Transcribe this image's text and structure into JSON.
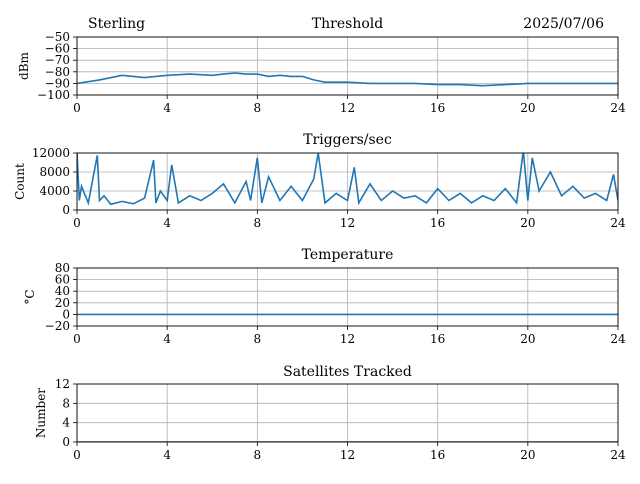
{
  "header": {
    "station": "Sterling",
    "date": "2025/07/06"
  },
  "colors": {
    "series": "#1f77b4",
    "grid": "#b0b0b0",
    "axis": "#000000"
  },
  "chart_data": [
    {
      "type": "line",
      "title": "Threshold",
      "xlabel": "",
      "ylabel": "dBm",
      "xlim": [
        0,
        24
      ],
      "ylim": [
        -100,
        -50
      ],
      "xticks": [
        0,
        4,
        8,
        12,
        16,
        20,
        24
      ],
      "yticks": [
        -100,
        -90,
        -80,
        -70,
        -60,
        -50
      ],
      "ytick_labels": [
        "−100",
        "−90",
        "−80",
        "−70",
        "−60",
        "−50"
      ],
      "grid": true,
      "series": [
        {
          "x": [
            0,
            1,
            2,
            3,
            4,
            5,
            6,
            6.5,
            7,
            7.5,
            8,
            8.5,
            9,
            9.5,
            10,
            10.5,
            11,
            12,
            13,
            14,
            15,
            16,
            17,
            18,
            19,
            20,
            21,
            22,
            23,
            24
          ],
          "y": [
            -90,
            -87,
            -83,
            -85,
            -83,
            -82,
            -83,
            -82,
            -81,
            -82,
            -82,
            -84,
            -83,
            -84,
            -84,
            -87,
            -89,
            -89,
            -90,
            -90,
            -90,
            -91,
            -91,
            -92,
            -91,
            -90,
            -90,
            -90,
            -90,
            -90
          ]
        }
      ]
    },
    {
      "type": "line",
      "title": "Triggers/sec",
      "xlabel": "",
      "ylabel": "Count",
      "xlim": [
        0,
        24
      ],
      "ylim": [
        0,
        12000
      ],
      "xticks": [
        0,
        4,
        8,
        12,
        16,
        20,
        24
      ],
      "yticks": [
        0,
        4000,
        8000,
        12000
      ],
      "ytick_labels": [
        "0",
        "4000",
        "8000",
        "12000"
      ],
      "grid": true,
      "series": [
        {
          "x": [
            0,
            0.1,
            0.2,
            0.5,
            0.9,
            1.0,
            1.2,
            1.5,
            2,
            2.5,
            3,
            3.4,
            3.5,
            3.7,
            4,
            4.2,
            4.5,
            5,
            5.5,
            6,
            6.5,
            7,
            7.5,
            7.7,
            8,
            8.2,
            8.5,
            9,
            9.5,
            10,
            10.5,
            10.7,
            11,
            11.5,
            12,
            12.3,
            12.5,
            13,
            13.5,
            14,
            14.5,
            15,
            15.5,
            16,
            16.5,
            17,
            17.5,
            18,
            18.5,
            19,
            19.5,
            19.8,
            20,
            20.2,
            20.5,
            21,
            21.5,
            22,
            22.5,
            23,
            23.5,
            23.8,
            24
          ],
          "y": [
            12000,
            2000,
            5000,
            1500,
            11500,
            2000,
            3000,
            1200,
            1800,
            1300,
            2500,
            10500,
            1500,
            4000,
            2000,
            9500,
            1500,
            3000,
            2000,
            3500,
            5500,
            1500,
            6000,
            2000,
            11000,
            1500,
            7000,
            2000,
            5000,
            2000,
            6500,
            12000,
            1500,
            3500,
            2000,
            9000,
            1500,
            5500,
            2000,
            4000,
            2500,
            3000,
            1500,
            4500,
            2000,
            3500,
            1500,
            3000,
            2000,
            4500,
            1500,
            12500,
            2000,
            11000,
            4000,
            8000,
            3000,
            5000,
            2500,
            3500,
            2000,
            7500,
            2000
          ]
        }
      ]
    },
    {
      "type": "line",
      "title": "Temperature",
      "xlabel": "",
      "ylabel": "°C",
      "xlim": [
        0,
        24
      ],
      "ylim": [
        -20,
        80
      ],
      "xticks": [
        0,
        4,
        8,
        12,
        16,
        20,
        24
      ],
      "yticks": [
        -20,
        0,
        20,
        40,
        60,
        80
      ],
      "ytick_labels": [
        "−20",
        "0",
        "20",
        "40",
        "60",
        "80"
      ],
      "grid": true,
      "series": [
        {
          "x": [
            0,
            24
          ],
          "y": [
            0,
            0
          ]
        }
      ]
    },
    {
      "type": "line",
      "title": "Satellites Tracked",
      "xlabel": "",
      "ylabel": "Number",
      "xlim": [
        0,
        24
      ],
      "ylim": [
        0,
        12
      ],
      "xticks": [
        0,
        4,
        8,
        12,
        16,
        20,
        24
      ],
      "yticks": [
        0,
        4,
        8,
        12
      ],
      "ytick_labels": [
        "0",
        "4",
        "8",
        "12"
      ],
      "grid": true,
      "series": [
        {
          "x": [
            0,
            24
          ],
          "y": [
            0,
            0
          ]
        }
      ]
    }
  ]
}
